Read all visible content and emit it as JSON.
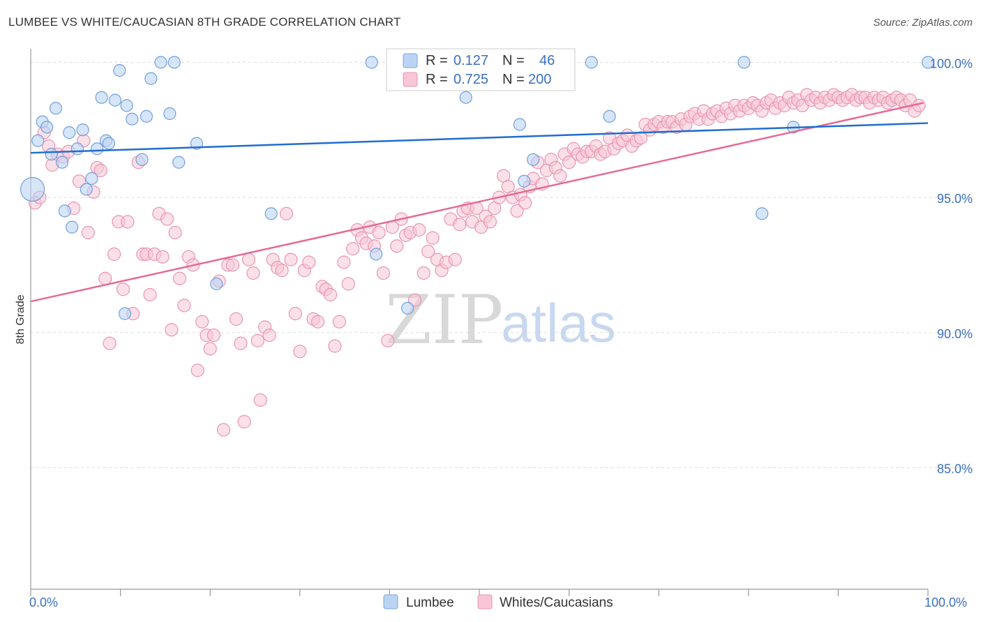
{
  "title": "LUMBEE VS WHITE/CAUCASIAN 8TH GRADE CORRELATION CHART",
  "source": "Source: ZipAtlas.com",
  "watermark": {
    "zip": "ZIP",
    "atlas": "atlas"
  },
  "legend": {
    "r_label": "R =",
    "n_label": "N =",
    "lumbee": {
      "r": "0.127",
      "n": "46"
    },
    "whites": {
      "r": "0.725",
      "n": "200"
    }
  },
  "colors": {
    "lumbee": "#8ab4e8",
    "lumbee_line": "#1f6dd0",
    "whites": "#f4a6c0",
    "whites_line": "#e56a98"
  },
  "chart_data": {
    "type": "scatter",
    "ylabel": "8th Grade",
    "xlim": [
      0,
      100
    ],
    "ylim": [
      80.5,
      100.5
    ],
    "x_tick_labels": [
      "0.0%",
      "100.0%"
    ],
    "y_ticks": [
      100,
      95,
      90,
      85
    ],
    "y_tick_labels": [
      "100.0%",
      "95.0%",
      "90.0%",
      "85.0%"
    ],
    "grid": true,
    "series": [
      {
        "name": "Lumbee",
        "trend": {
          "x": [
            0,
            100
          ],
          "y": [
            96.65,
            97.75
          ]
        },
        "points": [
          [
            0.2,
            95.3
          ],
          [
            0.8,
            97.1
          ],
          [
            1.3,
            97.8
          ],
          [
            1.8,
            97.6
          ],
          [
            2.3,
            96.6
          ],
          [
            2.8,
            98.3
          ],
          [
            3.5,
            96.3
          ],
          [
            3.8,
            94.5
          ],
          [
            4.3,
            97.4
          ],
          [
            4.6,
            93.9
          ],
          [
            5.2,
            96.8
          ],
          [
            5.8,
            97.5
          ],
          [
            6.2,
            95.3
          ],
          [
            6.8,
            95.7
          ],
          [
            7.4,
            96.8
          ],
          [
            7.9,
            98.7
          ],
          [
            8.4,
            97.1
          ],
          [
            8.7,
            97.0
          ],
          [
            9.4,
            98.6
          ],
          [
            9.9,
            99.7
          ],
          [
            10.5,
            90.7
          ],
          [
            10.7,
            98.4
          ],
          [
            11.3,
            97.9
          ],
          [
            12.4,
            96.4
          ],
          [
            12.9,
            98.0
          ],
          [
            13.4,
            99.4
          ],
          [
            14.5,
            100.0
          ],
          [
            15.5,
            98.1
          ],
          [
            16.0,
            100.0
          ],
          [
            16.5,
            96.3
          ],
          [
            18.5,
            97.0
          ],
          [
            20.7,
            91.8
          ],
          [
            26.8,
            94.4
          ],
          [
            38.0,
            100.0
          ],
          [
            38.5,
            92.9
          ],
          [
            42.0,
            90.9
          ],
          [
            48.5,
            98.7
          ],
          [
            54.5,
            97.7
          ],
          [
            55.0,
            95.6
          ],
          [
            56.0,
            96.4
          ],
          [
            62.5,
            100.0
          ],
          [
            64.5,
            98.0
          ],
          [
            79.5,
            100.0
          ],
          [
            81.5,
            94.4
          ],
          [
            85.0,
            97.6
          ],
          [
            100.0,
            100.0
          ]
        ]
      },
      {
        "name": "Whites/Caucasians",
        "trend": {
          "x": [
            0,
            99.5
          ],
          "y": [
            91.15,
            98.5
          ]
        },
        "points": [
          [
            0.5,
            94.8
          ],
          [
            1.0,
            95.0
          ],
          [
            1.5,
            97.4
          ],
          [
            2.0,
            96.9
          ],
          [
            2.4,
            96.2
          ],
          [
            3.0,
            96.6
          ],
          [
            3.6,
            96.5
          ],
          [
            4.2,
            96.7
          ],
          [
            4.8,
            94.6
          ],
          [
            5.4,
            95.6
          ],
          [
            5.9,
            97.1
          ],
          [
            6.4,
            93.7
          ],
          [
            7.0,
            95.2
          ],
          [
            7.4,
            96.1
          ],
          [
            7.8,
            96.0
          ],
          [
            8.3,
            92.0
          ],
          [
            8.8,
            89.6
          ],
          [
            9.3,
            92.9
          ],
          [
            9.8,
            94.1
          ],
          [
            10.3,
            91.6
          ],
          [
            10.8,
            94.1
          ],
          [
            11.4,
            90.7
          ],
          [
            12.0,
            96.3
          ],
          [
            12.5,
            92.9
          ],
          [
            12.9,
            92.9
          ],
          [
            13.3,
            91.4
          ],
          [
            13.8,
            92.9
          ],
          [
            14.3,
            94.4
          ],
          [
            14.7,
            92.8
          ],
          [
            15.2,
            94.2
          ],
          [
            15.7,
            90.1
          ],
          [
            16.1,
            93.7
          ],
          [
            16.6,
            92.0
          ],
          [
            17.1,
            91.0
          ],
          [
            17.6,
            92.8
          ],
          [
            18.1,
            92.5
          ],
          [
            18.6,
            88.6
          ],
          [
            19.1,
            90.4
          ],
          [
            19.6,
            89.9
          ],
          [
            20.0,
            89.4
          ],
          [
            20.4,
            89.9
          ],
          [
            21.0,
            91.9
          ],
          [
            21.5,
            86.4
          ],
          [
            22.0,
            92.5
          ],
          [
            22.5,
            92.5
          ],
          [
            22.9,
            90.5
          ],
          [
            23.4,
            89.6
          ],
          [
            23.8,
            86.7
          ],
          [
            24.3,
            92.7
          ],
          [
            24.8,
            92.2
          ],
          [
            25.3,
            89.7
          ],
          [
            25.6,
            87.5
          ],
          [
            26.1,
            90.2
          ],
          [
            26.6,
            89.9
          ],
          [
            27.0,
            92.7
          ],
          [
            27.5,
            92.4
          ],
          [
            28.0,
            92.3
          ],
          [
            28.5,
            94.4
          ],
          [
            29.0,
            92.7
          ],
          [
            29.5,
            90.7
          ],
          [
            30.0,
            89.3
          ],
          [
            30.5,
            92.3
          ],
          [
            31.0,
            92.6
          ],
          [
            31.5,
            90.5
          ],
          [
            32.0,
            90.4
          ],
          [
            32.5,
            91.7
          ],
          [
            32.9,
            91.6
          ],
          [
            33.4,
            91.4
          ],
          [
            33.9,
            89.5
          ],
          [
            34.4,
            90.4
          ],
          [
            34.9,
            92.6
          ],
          [
            35.4,
            91.8
          ],
          [
            35.9,
            93.1
          ],
          [
            36.4,
            93.8
          ],
          [
            36.9,
            93.5
          ],
          [
            37.4,
            93.3
          ],
          [
            37.8,
            93.9
          ],
          [
            38.3,
            93.2
          ],
          [
            38.8,
            93.7
          ],
          [
            39.3,
            92.2
          ],
          [
            39.8,
            89.7
          ],
          [
            40.3,
            93.9
          ],
          [
            40.8,
            93.2
          ],
          [
            41.3,
            94.2
          ],
          [
            41.8,
            93.6
          ],
          [
            42.3,
            93.7
          ],
          [
            42.8,
            91.2
          ],
          [
            43.3,
            93.8
          ],
          [
            43.8,
            92.2
          ],
          [
            44.3,
            93.0
          ],
          [
            44.8,
            93.5
          ],
          [
            45.3,
            92.7
          ],
          [
            45.8,
            92.3
          ],
          [
            46.3,
            92.6
          ],
          [
            46.8,
            94.2
          ],
          [
            47.3,
            92.7
          ],
          [
            47.8,
            94.0
          ],
          [
            48.2,
            94.5
          ],
          [
            48.7,
            94.6
          ],
          [
            49.2,
            94.1
          ],
          [
            49.7,
            94.6
          ],
          [
            50.2,
            93.9
          ],
          [
            50.7,
            94.3
          ],
          [
            51.2,
            94.1
          ],
          [
            51.7,
            94.6
          ],
          [
            52.2,
            95.0
          ],
          [
            52.7,
            95.8
          ],
          [
            53.2,
            95.4
          ],
          [
            53.7,
            95.0
          ],
          [
            54.2,
            94.5
          ],
          [
            54.6,
            95.1
          ],
          [
            55.1,
            94.8
          ],
          [
            55.6,
            95.4
          ],
          [
            56.0,
            95.7
          ],
          [
            56.5,
            96.3
          ],
          [
            57.0,
            95.5
          ],
          [
            57.5,
            96.0
          ],
          [
            58.0,
            96.4
          ],
          [
            58.5,
            96.1
          ],
          [
            59.0,
            95.8
          ],
          [
            59.5,
            96.6
          ],
          [
            60.0,
            96.3
          ],
          [
            60.5,
            96.8
          ],
          [
            61.0,
            96.6
          ],
          [
            61.5,
            96.5
          ],
          [
            62.0,
            96.7
          ],
          [
            62.5,
            96.7
          ],
          [
            63.0,
            96.9
          ],
          [
            63.5,
            96.6
          ],
          [
            64.0,
            96.7
          ],
          [
            64.5,
            97.2
          ],
          [
            65.0,
            96.8
          ],
          [
            65.5,
            97.0
          ],
          [
            66.0,
            97.1
          ],
          [
            66.5,
            97.3
          ],
          [
            67.0,
            96.9
          ],
          [
            67.5,
            97.1
          ],
          [
            68.0,
            97.2
          ],
          [
            68.5,
            97.7
          ],
          [
            69.0,
            97.5
          ],
          [
            69.5,
            97.7
          ],
          [
            70.0,
            97.8
          ],
          [
            70.5,
            97.6
          ],
          [
            71.0,
            97.8
          ],
          [
            71.5,
            97.8
          ],
          [
            72.0,
            97.6
          ],
          [
            72.5,
            97.9
          ],
          [
            73.0,
            97.7
          ],
          [
            73.5,
            98.0
          ],
          [
            74.0,
            98.1
          ],
          [
            74.5,
            97.9
          ],
          [
            75.0,
            98.2
          ],
          [
            75.5,
            97.9
          ],
          [
            76.0,
            98.1
          ],
          [
            76.5,
            98.2
          ],
          [
            77.0,
            98.0
          ],
          [
            77.5,
            98.3
          ],
          [
            78.0,
            98.1
          ],
          [
            78.5,
            98.4
          ],
          [
            79.0,
            98.2
          ],
          [
            79.5,
            98.4
          ],
          [
            80.0,
            98.3
          ],
          [
            80.5,
            98.5
          ],
          [
            81.0,
            98.4
          ],
          [
            81.5,
            98.2
          ],
          [
            82.0,
            98.5
          ],
          [
            82.5,
            98.6
          ],
          [
            83.0,
            98.3
          ],
          [
            83.5,
            98.5
          ],
          [
            84.0,
            98.4
          ],
          [
            84.5,
            98.7
          ],
          [
            85.0,
            98.5
          ],
          [
            85.5,
            98.6
          ],
          [
            86.0,
            98.4
          ],
          [
            86.5,
            98.8
          ],
          [
            87.0,
            98.6
          ],
          [
            87.5,
            98.7
          ],
          [
            88.0,
            98.5
          ],
          [
            88.5,
            98.7
          ],
          [
            89.0,
            98.6
          ],
          [
            89.5,
            98.8
          ],
          [
            90.0,
            98.7
          ],
          [
            90.5,
            98.6
          ],
          [
            91.0,
            98.7
          ],
          [
            91.5,
            98.8
          ],
          [
            92.0,
            98.6
          ],
          [
            92.5,
            98.7
          ],
          [
            93.0,
            98.7
          ],
          [
            93.5,
            98.5
          ],
          [
            94.0,
            98.7
          ],
          [
            94.5,
            98.6
          ],
          [
            95.0,
            98.7
          ],
          [
            95.5,
            98.5
          ],
          [
            96.0,
            98.6
          ],
          [
            96.5,
            98.7
          ],
          [
            97.0,
            98.6
          ],
          [
            97.5,
            98.4
          ],
          [
            98.0,
            98.6
          ],
          [
            98.5,
            98.2
          ],
          [
            99.0,
            98.4
          ]
        ]
      }
    ]
  },
  "bottom_legend": {
    "lumbee": "Lumbee",
    "whites": "Whites/Caucasians"
  }
}
